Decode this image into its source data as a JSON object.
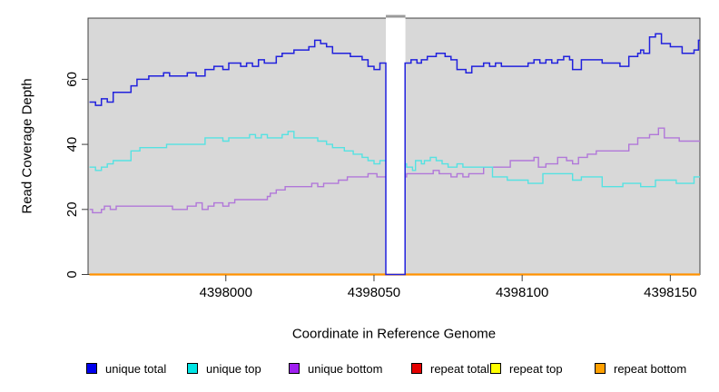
{
  "chart_data": {
    "type": "line",
    "subtype": "step",
    "title": "",
    "xlabel": "Coordinate in Reference Genome",
    "ylabel": "Read Coverage Depth",
    "xlim": [
      4397953.5,
      4398160
    ],
    "ylim": [
      0,
      78.8
    ],
    "x_ticks": [
      4398000,
      4398050,
      4398100,
      4398150
    ],
    "x_tick_labels": [
      "4398000",
      "4398050",
      "4398100",
      "4398150"
    ],
    "y_ticks": [
      0,
      20,
      40,
      60
    ],
    "y_tick_labels": [
      "0",
      "20",
      "40",
      "60"
    ],
    "plot_bg_color": "#d8d8d8",
    "box_color": "#404040",
    "grid": "off",
    "gap_region": {
      "x_start": 4398054,
      "x_end": 4398060.6
    },
    "series": [
      {
        "name": "unique total",
        "color": "#2121dd",
        "width": 1.5,
        "points": [
          [
            4397954,
            53
          ],
          [
            4397956,
            52
          ],
          [
            4397958,
            54
          ],
          [
            4397960,
            53
          ],
          [
            4397962,
            56
          ],
          [
            4397968,
            58
          ],
          [
            4397970,
            60
          ],
          [
            4397974,
            61
          ],
          [
            4397979,
            62
          ],
          [
            4397981,
            61
          ],
          [
            4397987,
            62
          ],
          [
            4397990,
            61
          ],
          [
            4397993,
            63
          ],
          [
            4397996,
            64
          ],
          [
            4397999,
            63
          ],
          [
            4398001,
            65
          ],
          [
            4398005,
            64
          ],
          [
            4398007,
            65
          ],
          [
            4398009,
            64
          ],
          [
            4398011,
            66
          ],
          [
            4398013,
            65
          ],
          [
            4398017,
            67
          ],
          [
            4398019,
            68
          ],
          [
            4398023,
            69
          ],
          [
            4398028,
            70
          ],
          [
            4398030,
            72
          ],
          [
            4398032,
            71
          ],
          [
            4398034,
            70
          ],
          [
            4398036,
            68
          ],
          [
            4398040,
            68
          ],
          [
            4398042,
            67
          ],
          [
            4398046,
            66
          ],
          [
            4398048,
            64
          ],
          [
            4398050,
            63
          ],
          [
            4398052,
            65
          ],
          [
            4398054,
            0
          ],
          [
            4398060.5,
            65
          ],
          [
            4398062.5,
            66
          ],
          [
            4398064.5,
            65
          ],
          [
            4398066,
            66
          ],
          [
            4398068,
            67
          ],
          [
            4398071,
            68
          ],
          [
            4398074,
            67
          ],
          [
            4398076,
            66
          ],
          [
            4398078,
            63
          ],
          [
            4398081,
            62
          ],
          [
            4398083,
            64
          ],
          [
            4398087,
            65
          ],
          [
            4398089,
            64
          ],
          [
            4398091,
            65
          ],
          [
            4398093,
            64
          ],
          [
            4398102,
            65
          ],
          [
            4398104,
            66
          ],
          [
            4398106,
            65
          ],
          [
            4398108,
            66
          ],
          [
            4398110,
            65
          ],
          [
            4398112,
            66
          ],
          [
            4398114,
            67
          ],
          [
            4398116,
            66
          ],
          [
            4398117,
            63
          ],
          [
            4398120,
            66
          ],
          [
            4398127,
            65
          ],
          [
            4398133,
            64
          ],
          [
            4398136,
            67
          ],
          [
            4398139,
            68
          ],
          [
            4398140,
            69
          ],
          [
            4398141,
            68
          ],
          [
            4398143,
            73
          ],
          [
            4398145,
            74
          ],
          [
            4398147,
            71
          ],
          [
            4398150,
            70
          ],
          [
            4398154,
            68
          ],
          [
            4398158,
            69
          ],
          [
            4398159.5,
            72
          ],
          [
            4398160,
            72
          ]
        ]
      },
      {
        "name": "unique top",
        "color": "#55e2e2",
        "width": 1.4,
        "points": [
          [
            4397954,
            33
          ],
          [
            4397956,
            32
          ],
          [
            4397958,
            33
          ],
          [
            4397960,
            34
          ],
          [
            4397962,
            35
          ],
          [
            4397968,
            38
          ],
          [
            4397971,
            39
          ],
          [
            4397980,
            40
          ],
          [
            4397993,
            42
          ],
          [
            4397999,
            41
          ],
          [
            4398001,
            42
          ],
          [
            4398008,
            43
          ],
          [
            4398010,
            42
          ],
          [
            4398012,
            43
          ],
          [
            4398014,
            42
          ],
          [
            4398019,
            43
          ],
          [
            4398021,
            44
          ],
          [
            4398023,
            42
          ],
          [
            4398031,
            41
          ],
          [
            4398034,
            40
          ],
          [
            4398036,
            39
          ],
          [
            4398040,
            38
          ],
          [
            4398043,
            37
          ],
          [
            4398046,
            36
          ],
          [
            4398048,
            35
          ],
          [
            4398050,
            34
          ],
          [
            4398052,
            35
          ],
          [
            4398054,
            34
          ],
          [
            4398061,
            33
          ],
          [
            4398063,
            32
          ],
          [
            4398064,
            35
          ],
          [
            4398066,
            34
          ],
          [
            4398067,
            35
          ],
          [
            4398069,
            36
          ],
          [
            4398071,
            35
          ],
          [
            4398073,
            34
          ],
          [
            4398075,
            33
          ],
          [
            4398078,
            34
          ],
          [
            4398080,
            33
          ],
          [
            4398090,
            30
          ],
          [
            4398095,
            29
          ],
          [
            4398102,
            28
          ],
          [
            4398107,
            31
          ],
          [
            4398117,
            29
          ],
          [
            4398120,
            30
          ],
          [
            4398127,
            27
          ],
          [
            4398134,
            28
          ],
          [
            4398140,
            27
          ],
          [
            4398145,
            29
          ],
          [
            4398152,
            28
          ],
          [
            4398158,
            30
          ],
          [
            4398160,
            30
          ]
        ]
      },
      {
        "name": "unique bottom",
        "color": "#b177d9",
        "width": 1.4,
        "points": [
          [
            4397954,
            20
          ],
          [
            4397955,
            19
          ],
          [
            4397958,
            20
          ],
          [
            4397959,
            21
          ],
          [
            4397961,
            20
          ],
          [
            4397963,
            21
          ],
          [
            4397982,
            20
          ],
          [
            4397987,
            21
          ],
          [
            4397990,
            22
          ],
          [
            4397992,
            20
          ],
          [
            4397994,
            21
          ],
          [
            4397996,
            22
          ],
          [
            4397999,
            21
          ],
          [
            4398001,
            22
          ],
          [
            4398003,
            23
          ],
          [
            4398014,
            24
          ],
          [
            4398015,
            25
          ],
          [
            4398017,
            26
          ],
          [
            4398020,
            27
          ],
          [
            4398029,
            28
          ],
          [
            4398031,
            27
          ],
          [
            4398033,
            28
          ],
          [
            4398038,
            29
          ],
          [
            4398041,
            30
          ],
          [
            4398048,
            31
          ],
          [
            4398051,
            30
          ],
          [
            4398061,
            31
          ],
          [
            4398070,
            32
          ],
          [
            4398072,
            31
          ],
          [
            4398076,
            30
          ],
          [
            4398078,
            31
          ],
          [
            4398080,
            30
          ],
          [
            4398082,
            31
          ],
          [
            4398087,
            33
          ],
          [
            4398096,
            35
          ],
          [
            4398104,
            36
          ],
          [
            4398105.5,
            33
          ],
          [
            4398108,
            34
          ],
          [
            4398112,
            36
          ],
          [
            4398115,
            35
          ],
          [
            4398117,
            34
          ],
          [
            4398119,
            36
          ],
          [
            4398122,
            37
          ],
          [
            4398125,
            38
          ],
          [
            4398136,
            40
          ],
          [
            4398139,
            42
          ],
          [
            4398143,
            43
          ],
          [
            4398146,
            45
          ],
          [
            4398148,
            42
          ],
          [
            4398153,
            41
          ],
          [
            4398160,
            41
          ]
        ]
      },
      {
        "name": "repeat total",
        "color": "#e50000",
        "width": 1.4,
        "points": [
          [
            4397954,
            0
          ],
          [
            4398160,
            0
          ]
        ]
      },
      {
        "name": "repeat top",
        "color": "#ffff00",
        "width": 1.4,
        "points": [
          [
            4397954,
            0
          ],
          [
            4398160,
            0
          ]
        ]
      },
      {
        "name": "repeat bottom",
        "color": "#ff9100",
        "width": 2.2,
        "points": [
          [
            4397954,
            0
          ],
          [
            4398160,
            0
          ]
        ]
      }
    ],
    "legend": {
      "position": "bottom",
      "items": [
        {
          "label": "unique total",
          "swatch": "#0000ee"
        },
        {
          "label": "unique top",
          "swatch": "#00e5e5"
        },
        {
          "label": "unique bottom",
          "swatch": "#a020f0"
        },
        {
          "label": "repeat total",
          "swatch": "#e50000"
        },
        {
          "label": "repeat top",
          "swatch": "#ffff00"
        },
        {
          "label": "repeat bottom",
          "swatch": "#ffa000"
        }
      ]
    }
  }
}
